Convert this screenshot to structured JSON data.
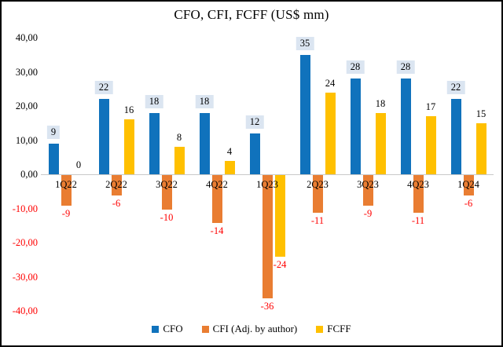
{
  "chart_data": {
    "type": "bar",
    "title": "CFO, CFI, FCFF (US$ mm)",
    "categories": [
      "1Q22",
      "2Q22",
      "3Q22",
      "4Q22",
      "1Q23",
      "2Q23",
      "3Q23",
      "4Q23",
      "1Q24"
    ],
    "series": [
      {
        "name": "CFO",
        "color": "#1072BC",
        "values": [
          9,
          22,
          18,
          18,
          12,
          35,
          28,
          28,
          22
        ],
        "label_boxed": true,
        "label_box_color": "#DBE5F1"
      },
      {
        "name": "CFI (Adj. by author)",
        "color": "#E97D32",
        "values": [
          -9,
          -6,
          -10,
          -14,
          -36,
          -11,
          -9,
          -11,
          -6
        ],
        "label_boxed": false
      },
      {
        "name": "FCFF",
        "color": "#FFC000",
        "values": [
          0,
          16,
          8,
          4,
          -24,
          24,
          18,
          17,
          15
        ],
        "label_boxed": false
      }
    ],
    "ylim": [
      -40,
      40
    ],
    "yticks": [
      {
        "label": "40,00",
        "value": 40
      },
      {
        "label": "30,00",
        "value": 30
      },
      {
        "label": "20,00",
        "value": 20
      },
      {
        "label": "10,00",
        "value": 10
      },
      {
        "label": "0,00",
        "value": 0
      },
      {
        "label": "-10,00",
        "value": -10
      },
      {
        "label": "-20,00",
        "value": -20
      },
      {
        "label": "-30,00",
        "value": -30
      },
      {
        "label": "-40,00",
        "value": -40
      }
    ],
    "grid": false,
    "legend_position": "bottom",
    "positive_label_color": "#000000",
    "negative_label_color": "#FF0000",
    "axis_line_color": "#C9C9C9"
  }
}
